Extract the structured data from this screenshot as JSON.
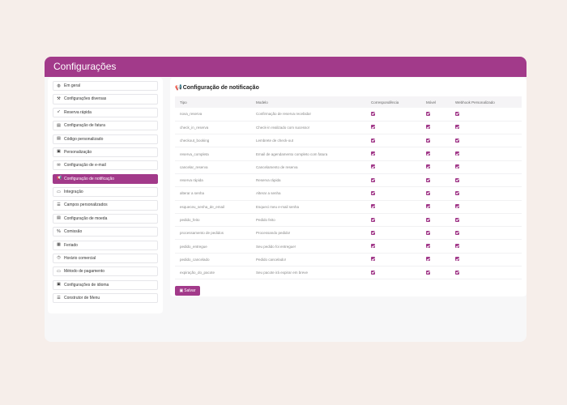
{
  "header": {
    "title": "Configurações"
  },
  "sidebar": {
    "items": [
      {
        "label": "Em geral",
        "icon": "globe-icon",
        "glyph": "◍"
      },
      {
        "label": "Configurações diversas",
        "icon": "tools-icon",
        "glyph": "⚒"
      },
      {
        "label": "Reserva rápida",
        "icon": "rocket-icon",
        "glyph": "➶"
      },
      {
        "label": "Configuração de fatura",
        "icon": "file-icon",
        "glyph": "▤"
      },
      {
        "label": "Código personalizado",
        "icon": "file-code-icon",
        "glyph": "▤"
      },
      {
        "label": "Personalização",
        "icon": "palette-icon",
        "glyph": "▣"
      },
      {
        "label": "Configuração de e-mail",
        "icon": "envelope-icon",
        "glyph": "✉"
      },
      {
        "label": "Configuração de notificação",
        "icon": "megaphone-icon",
        "glyph": "📢",
        "active": true
      },
      {
        "label": "Integração",
        "icon": "plug-icon",
        "glyph": "▭"
      },
      {
        "label": "Campos personalizados",
        "icon": "list-icon",
        "glyph": "☰"
      },
      {
        "label": "Configuração de moeda",
        "icon": "money-file-icon",
        "glyph": "▤"
      },
      {
        "label": "Comissão",
        "icon": "percent-icon",
        "glyph": "%"
      },
      {
        "label": "Feriado",
        "icon": "calendar-icon",
        "glyph": "▦"
      },
      {
        "label": "Horário comercial",
        "icon": "clock-icon",
        "glyph": "◷"
      },
      {
        "label": "Método de pagamento",
        "icon": "credit-card-icon",
        "glyph": "▭"
      },
      {
        "label": "Configurações de idioma",
        "icon": "language-icon",
        "glyph": "▣"
      },
      {
        "label": "Construtor de Menu",
        "icon": "menu-icon",
        "glyph": "☰"
      }
    ]
  },
  "main": {
    "title": "Configuração de notificação",
    "title_icon": "megaphone-icon",
    "columns": [
      "Tipo",
      "Modelo",
      "Correspondência",
      "Móvel",
      "Webhook Personalizado"
    ],
    "rows": [
      {
        "tipo": "nova_reserva",
        "modelo": "Confirmação de reserva recebida!",
        "correspondencia": true,
        "movel": true,
        "webhook": true
      },
      {
        "tipo": "check_in_reserva",
        "modelo": "Check-in realizado com sucesso!",
        "correspondencia": true,
        "movel": true,
        "webhook": true
      },
      {
        "tipo": "checkout_booking",
        "modelo": "Lembrete de check-out",
        "correspondencia": true,
        "movel": true,
        "webhook": true
      },
      {
        "tipo": "reserva_completa",
        "modelo": "Email de agendamento completo com fatura",
        "correspondencia": true,
        "movel": true,
        "webhook": true
      },
      {
        "tipo": "cancelar_reserva",
        "modelo": "Cancelamento de reserva",
        "correspondencia": true,
        "movel": true,
        "webhook": true
      },
      {
        "tipo": "reserva rápida",
        "modelo": "Reserva rápida",
        "correspondencia": true,
        "movel": true,
        "webhook": true
      },
      {
        "tipo": "alterar a senha",
        "modelo": "Alterar a senha",
        "correspondencia": true,
        "movel": true,
        "webhook": true
      },
      {
        "tipo": "esqueceu_senha_de_email",
        "modelo": "Esqueci meu e-mail senha",
        "correspondencia": true,
        "movel": true,
        "webhook": true
      },
      {
        "tipo": "pedido_feito",
        "modelo": "Pedido feito",
        "correspondencia": true,
        "movel": true,
        "webhook": true
      },
      {
        "tipo": "processamento de pedidos",
        "modelo": "Processando pedido!",
        "correspondencia": true,
        "movel": true,
        "webhook": true
      },
      {
        "tipo": "pedido_entregue",
        "modelo": "Seu pedido foi entregue!",
        "correspondencia": true,
        "movel": true,
        "webhook": true
      },
      {
        "tipo": "pedido_cancelado",
        "modelo": "Pedido cancelado!",
        "correspondencia": true,
        "movel": true,
        "webhook": true
      },
      {
        "tipo": "expiração_do_pacote",
        "modelo": "Seu pacote irá expirar em breve",
        "correspondencia": true,
        "movel": true,
        "webhook": true
      }
    ],
    "save_label": "Salvar",
    "save_icon": "floppy-disk-icon"
  },
  "colors": {
    "accent": "#a23a8a",
    "background": "#f6eeea",
    "panel": "#ffffff"
  }
}
